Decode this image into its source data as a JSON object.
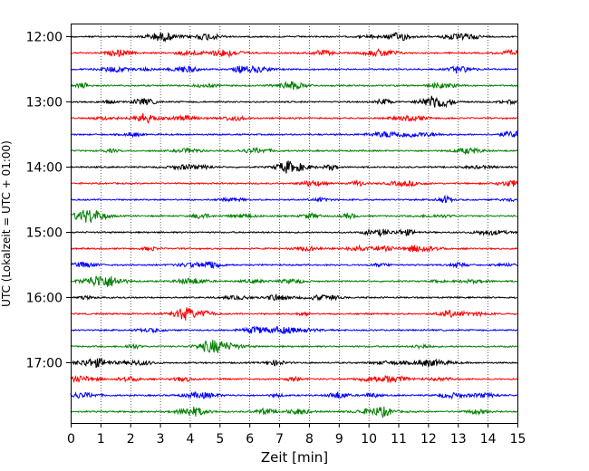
{
  "chart_data": {
    "type": "line",
    "subtype": "seismogram-helicorder",
    "xlabel": "Zeit  [min]",
    "ylabel": "UTC (Lokalzeit = UTC + 01:00)",
    "xlim": [
      0,
      15
    ],
    "x_ticks": [
      "0",
      "1",
      "2",
      "3",
      "4",
      "5",
      "6",
      "7",
      "8",
      "9",
      "10",
      "11",
      "12",
      "13",
      "14",
      "15"
    ],
    "y_ticks": [
      "12:00",
      "13:00",
      "14:00",
      "15:00",
      "16:00",
      "17:00"
    ],
    "trace_count": 24,
    "trace_interval_minutes": 15,
    "trace_colors": [
      "#000000",
      "#ff0000",
      "#0000ff",
      "#008000"
    ],
    "grid": "vertical dotted at each minute"
  }
}
